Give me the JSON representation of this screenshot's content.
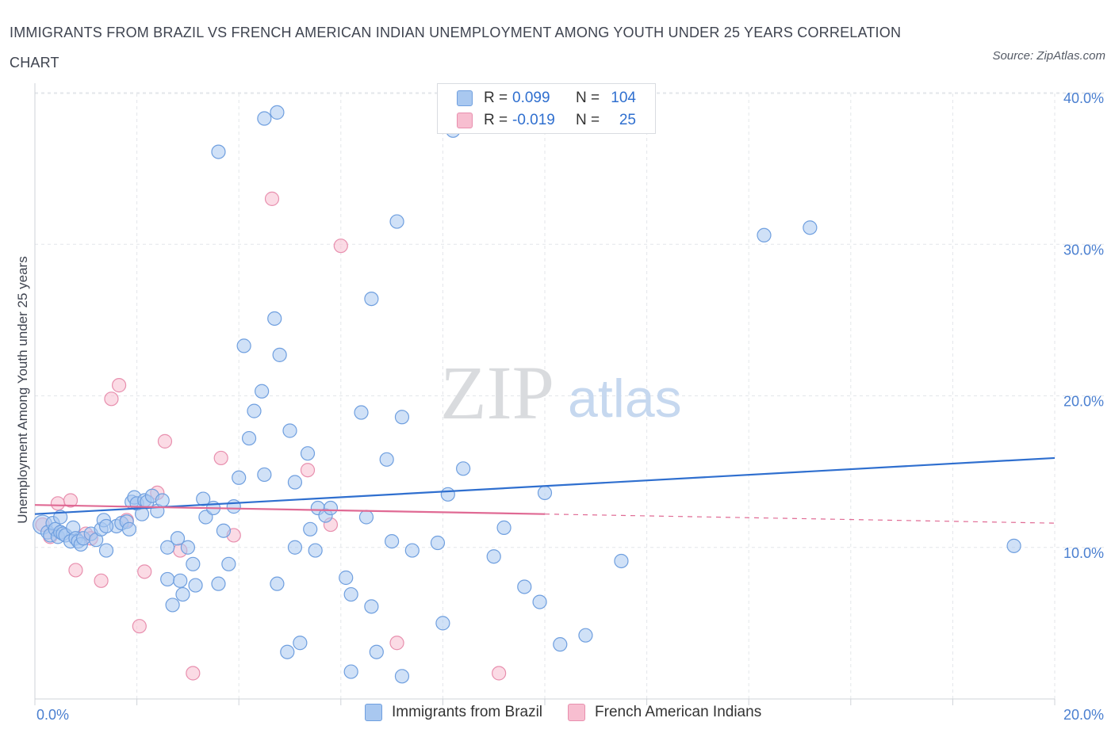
{
  "header": {
    "title": "IMMIGRANTS FROM BRAZIL VS FRENCH AMERICAN INDIAN UNEMPLOYMENT AMONG YOUTH UNDER 25 YEARS CORRELATION CHART",
    "source": "Source: ZipAtlas.com"
  },
  "watermark": {
    "zip": "ZIP",
    "atlas": "atlas"
  },
  "legend": {
    "rows": [
      {
        "r_label": "R =",
        "r_value": "0.099",
        "n_label": "N =",
        "n_value": "104"
      },
      {
        "r_label": "R =",
        "r_value": "-0.019",
        "n_label": "N =",
        "n_value": "25"
      }
    ]
  },
  "colors": {
    "series1_fill": "#a9c8f0",
    "series1_stroke": "#6f9fdf",
    "series1_line": "#2f6fcf",
    "series2_fill": "#f7bed0",
    "series2_stroke": "#e88fae",
    "series2_line": "#e06a94",
    "grid": "#e3e6ea",
    "axis": "#cfd3d8",
    "tick_text": "#4a7fd0"
  },
  "chart_data": {
    "type": "scatter",
    "title": "IMMIGRANTS FROM BRAZIL VS FRENCH AMERICAN INDIAN UNEMPLOYMENT AMONG YOUTH UNDER 25 YEARS CORRELATION CHART",
    "xlabel": "",
    "ylabel": "Unemployment Among Youth under 25 years",
    "xlim": [
      0,
      20
    ],
    "ylim": [
      0,
      40
    ],
    "x_ticks": [
      "0.0%",
      "20.0%"
    ],
    "y_ticks": [
      {
        "value": 10,
        "label": "10.0%"
      },
      {
        "value": 20,
        "label": "20.0%"
      },
      {
        "value": 30,
        "label": "30.0%"
      },
      {
        "value": 40,
        "label": "40.0%"
      }
    ],
    "grid": true,
    "legend_position": "bottom",
    "series": [
      {
        "name": "Immigrants from Brazil",
        "points": [
          [
            0.15,
            11.5
          ],
          [
            0.25,
            11.0
          ],
          [
            0.3,
            10.8
          ],
          [
            0.35,
            11.6
          ],
          [
            0.4,
            11.2
          ],
          [
            0.45,
            10.7
          ],
          [
            0.5,
            11.0
          ],
          [
            0.55,
            10.9
          ],
          [
            0.6,
            10.8
          ],
          [
            0.7,
            10.4
          ],
          [
            0.75,
            11.3
          ],
          [
            0.8,
            10.6
          ],
          [
            0.85,
            10.4
          ],
          [
            0.9,
            10.2
          ],
          [
            0.95,
            10.6
          ],
          [
            1.1,
            10.9
          ],
          [
            1.2,
            10.5
          ],
          [
            1.3,
            11.2
          ],
          [
            1.35,
            11.8
          ],
          [
            1.4,
            9.8
          ],
          [
            1.6,
            11.4
          ],
          [
            1.7,
            11.6
          ],
          [
            1.8,
            11.7
          ],
          [
            1.85,
            11.2
          ],
          [
            1.9,
            13.0
          ],
          [
            1.95,
            13.3
          ],
          [
            2.0,
            12.9
          ],
          [
            2.1,
            12.2
          ],
          [
            2.15,
            13.1
          ],
          [
            2.2,
            13.0
          ],
          [
            2.3,
            13.4
          ],
          [
            2.4,
            12.4
          ],
          [
            2.5,
            13.1
          ],
          [
            2.6,
            7.9
          ],
          [
            2.6,
            10.0
          ],
          [
            2.7,
            6.2
          ],
          [
            2.8,
            10.6
          ],
          [
            2.85,
            7.8
          ],
          [
            2.9,
            6.9
          ],
          [
            3.0,
            10.0
          ],
          [
            3.1,
            8.9
          ],
          [
            3.15,
            7.5
          ],
          [
            3.3,
            13.2
          ],
          [
            3.35,
            12.0
          ],
          [
            3.5,
            12.6
          ],
          [
            3.6,
            7.6
          ],
          [
            3.7,
            11.1
          ],
          [
            3.8,
            8.9
          ],
          [
            4.0,
            14.6
          ],
          [
            4.1,
            23.3
          ],
          [
            4.2,
            17.2
          ],
          [
            4.3,
            19.0
          ],
          [
            4.45,
            20.3
          ],
          [
            4.5,
            14.8
          ],
          [
            4.7,
            25.1
          ],
          [
            4.75,
            7.6
          ],
          [
            4.8,
            22.7
          ],
          [
            4.95,
            3.1
          ],
          [
            5.0,
            17.7
          ],
          [
            5.1,
            10.0
          ],
          [
            5.2,
            3.7
          ],
          [
            5.35,
            16.2
          ],
          [
            5.4,
            11.2
          ],
          [
            5.5,
            9.8
          ],
          [
            5.55,
            12.6
          ],
          [
            5.7,
            12.1
          ],
          [
            5.8,
            12.6
          ],
          [
            6.1,
            8.0
          ],
          [
            6.2,
            6.9
          ],
          [
            6.4,
            18.9
          ],
          [
            6.5,
            12.0
          ],
          [
            6.6,
            6.1
          ],
          [
            6.7,
            3.1
          ],
          [
            6.9,
            15.8
          ],
          [
            7.0,
            10.4
          ],
          [
            7.2,
            1.5
          ],
          [
            7.2,
            18.6
          ],
          [
            7.4,
            9.8
          ],
          [
            7.9,
            10.3
          ],
          [
            8.0,
            5.0
          ],
          [
            8.1,
            13.5
          ],
          [
            8.4,
            15.2
          ],
          [
            9.0,
            9.4
          ],
          [
            9.2,
            11.3
          ],
          [
            9.6,
            7.4
          ],
          [
            9.9,
            6.4
          ],
          [
            10.0,
            13.6
          ],
          [
            10.3,
            3.6
          ],
          [
            10.8,
            4.2
          ],
          [
            11.5,
            9.1
          ],
          [
            3.6,
            36.1
          ],
          [
            4.5,
            38.3
          ],
          [
            4.75,
            38.7
          ],
          [
            8.2,
            37.5
          ],
          [
            7.1,
            31.5
          ],
          [
            14.3,
            30.6
          ],
          [
            15.2,
            31.1
          ],
          [
            6.6,
            26.4
          ],
          [
            19.2,
            10.1
          ],
          [
            6.2,
            1.8
          ],
          [
            1.4,
            11.4
          ],
          [
            0.5,
            12.0
          ],
          [
            5.1,
            14.3
          ],
          [
            3.9,
            12.7
          ]
        ]
      },
      {
        "name": "French American Indians",
        "points": [
          [
            0.15,
            11.5
          ],
          [
            0.3,
            10.7
          ],
          [
            0.45,
            12.9
          ],
          [
            0.7,
            13.1
          ],
          [
            0.8,
            8.5
          ],
          [
            1.0,
            10.9
          ],
          [
            1.1,
            10.6
          ],
          [
            1.3,
            7.8
          ],
          [
            1.5,
            19.8
          ],
          [
            1.65,
            20.7
          ],
          [
            1.8,
            11.8
          ],
          [
            2.05,
            4.8
          ],
          [
            2.15,
            8.4
          ],
          [
            2.4,
            13.6
          ],
          [
            2.55,
            17.0
          ],
          [
            2.85,
            9.8
          ],
          [
            3.1,
            1.7
          ],
          [
            3.65,
            15.9
          ],
          [
            3.9,
            10.8
          ],
          [
            4.65,
            33.0
          ],
          [
            5.35,
            15.1
          ],
          [
            5.8,
            11.5
          ],
          [
            6.0,
            29.9
          ],
          [
            7.1,
            3.7
          ],
          [
            9.1,
            1.7
          ]
        ]
      }
    ],
    "trend_lines": [
      {
        "series": "Immigrants from Brazil",
        "x": [
          0,
          20
        ],
        "y": [
          12.2,
          15.9
        ]
      },
      {
        "series": "French American Indians",
        "x": [
          0,
          10
        ],
        "y": [
          12.8,
          12.2
        ],
        "dashed_to": [
          20,
          11.6
        ]
      }
    ]
  }
}
